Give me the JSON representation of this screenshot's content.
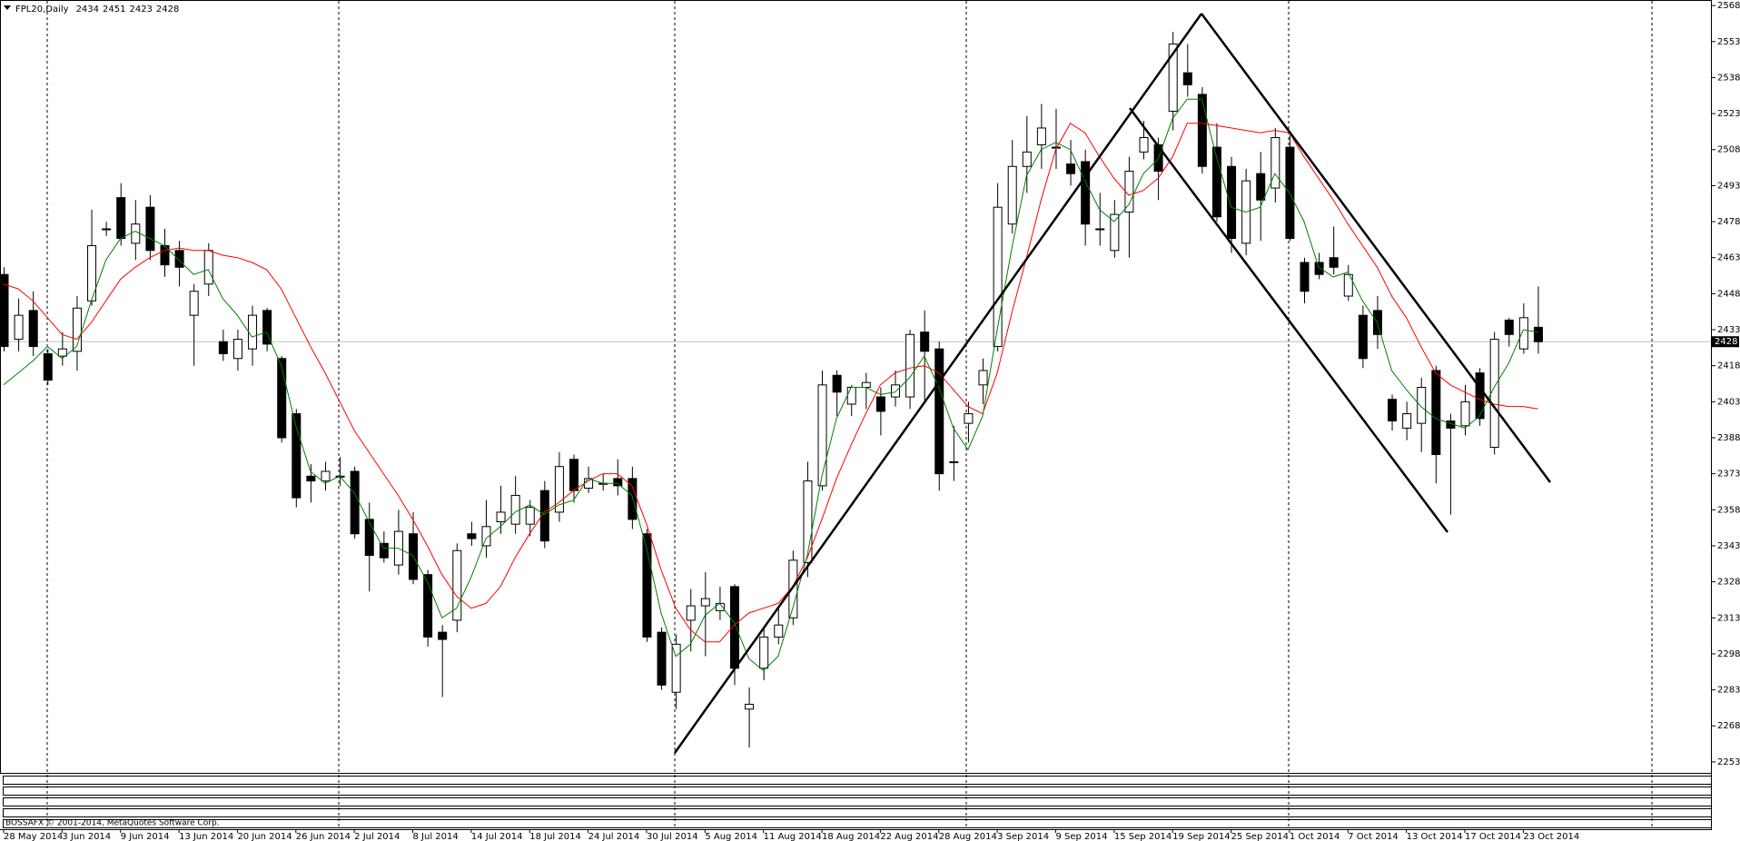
{
  "chart_data": {
    "type": "candlestick",
    "title": "FPL20,Daily",
    "footnote": "BOSSAFX © 2001-2014, MetaQuotes Software Corp.",
    "categories": [
      "28 May 2014",
      null,
      null,
      null,
      "3 Jun 2014",
      null,
      null,
      null,
      "9 Jun 2014",
      null,
      null,
      null,
      "13 Jun 2014",
      null,
      null,
      null,
      "20 Jun 2014",
      null,
      null,
      null,
      "26 Jun 2014",
      null,
      null,
      null,
      "2 Jul 2014",
      null,
      null,
      null,
      "8 Jul 2014",
      null,
      null,
      null,
      "14 Jul 2014",
      null,
      null,
      null,
      "18 Jul 2014",
      null,
      null,
      null,
      "24 Jul 2014",
      null,
      null,
      null,
      "30 Jul 2014",
      null,
      null,
      null,
      "5 Aug 2014",
      null,
      null,
      null,
      "11 Aug 2014",
      null,
      null,
      null,
      "18 Aug 2014",
      null,
      null,
      null,
      "22 Aug 2014",
      null,
      null,
      null,
      "28 Aug 2014",
      null,
      null,
      null,
      "3 Sep 2014",
      null,
      null,
      null,
      "9 Sep 2014",
      null,
      null,
      null,
      "15 Sep 2014",
      null,
      null,
      null,
      "19 Sep 2014",
      null,
      null,
      null,
      "25 Sep 2014",
      null,
      null,
      null,
      "1 Oct 2014",
      null,
      null,
      null,
      "7 Oct 2014",
      null,
      null,
      null,
      "13 Oct 2014",
      null,
      null,
      null,
      "17 Oct 2014",
      null,
      null,
      null,
      "23 Oct 2014",
      null
    ],
    "open": [
      2456,
      2429,
      2441,
      2423,
      2422,
      2424,
      2445,
      2475,
      2488,
      2469,
      2484,
      2468,
      2466,
      2439,
      2452,
      2428,
      2421,
      2425,
      2441,
      2421,
      2398,
      2372,
      2370,
      2372,
      2374,
      2354,
      2344,
      2335,
      2348,
      2331,
      2307,
      2312,
      2348,
      2343,
      2353,
      2352,
      2352,
      2366,
      2357,
      2379,
      2367,
      2369,
      2371,
      2371,
      2348,
      2307,
      2282,
      2312,
      2318,
      2316,
      2326,
      2275,
      2292,
      2305,
      2313,
      2336,
      2368,
      2414,
      2402,
      2409,
      2405,
      2405,
      2405,
      2432,
      2425,
      2378,
      2394,
      2410,
      2426,
      2477,
      2501,
      2510,
      2509,
      2502,
      2503,
      2475,
      2466,
      2482,
      2507,
      2510,
      2524,
      2540,
      2531,
      2509,
      2501,
      2469,
      2498,
      2492,
      2509,
      2461,
      2461,
      2463,
      2447,
      2439,
      2441,
      2404,
      2392,
      2394,
      2416,
      2395,
      2393,
      2415,
      2384,
      2437,
      2425,
      2434
    ],
    "high": [
      2459,
      2446,
      2449,
      2425,
      2432,
      2447,
      2483,
      2478,
      2494,
      2487,
      2489,
      2475,
      2470,
      2452,
      2469,
      2433,
      2433,
      2443,
      2442,
      2422,
      2400,
      2377,
      2378,
      2380,
      2376,
      2361,
      2349,
      2358,
      2357,
      2333,
      2310,
      2344,
      2353,
      2362,
      2368,
      2372,
      2362,
      2370,
      2382,
      2381,
      2376,
      2373,
      2379,
      2376,
      2350,
      2309,
      2306,
      2325,
      2332,
      2326,
      2327,
      2284,
      2309,
      2317,
      2341,
      2378,
      2416,
      2416,
      2410,
      2415,
      2409,
      2416,
      2433,
      2441,
      2428,
      2393,
      2403,
      2421,
      2494,
      2512,
      2522,
      2527,
      2525,
      2512,
      2508,
      2490,
      2487,
      2505,
      2520,
      2513,
      2557,
      2552,
      2534,
      2519,
      2505,
      2500,
      2507,
      2517,
      2514,
      2463,
      2465,
      2476,
      2460,
      2443,
      2447,
      2406,
      2403,
      2413,
      2418,
      2398,
      2410,
      2417,
      2432,
      2438,
      2444,
      2451
    ],
    "low": [
      2424,
      2424,
      2422,
      2410,
      2418,
      2416,
      2443,
      2472,
      2468,
      2462,
      2462,
      2455,
      2451,
      2418,
      2447,
      2420,
      2416,
      2418,
      2424,
      2386,
      2359,
      2361,
      2366,
      2368,
      2346,
      2324,
      2336,
      2331,
      2327,
      2301,
      2280,
      2307,
      2343,
      2338,
      2348,
      2348,
      2347,
      2342,
      2353,
      2361,
      2365,
      2366,
      2364,
      2350,
      2303,
      2283,
      2275,
      2299,
      2297,
      2312,
      2285,
      2259,
      2287,
      2302,
      2310,
      2330,
      2366,
      2397,
      2397,
      2400,
      2389,
      2401,
      2400,
      2403,
      2366,
      2370,
      2386,
      2402,
      2424,
      2473,
      2490,
      2500,
      2500,
      2493,
      2468,
      2468,
      2463,
      2463,
      2504,
      2487,
      2516,
      2530,
      2498,
      2478,
      2465,
      2464,
      2470,
      2486,
      2470,
      2444,
      2454,
      2456,
      2445,
      2417,
      2425,
      2391,
      2387,
      2382,
      2369,
      2356,
      2389,
      2393,
      2381,
      2426,
      2423,
      2423
    ],
    "close": [
      2426,
      2439,
      2426,
      2412,
      2425,
      2442,
      2468,
      2475,
      2471,
      2477,
      2466,
      2460,
      2459,
      2449,
      2466,
      2423,
      2429,
      2439,
      2427,
      2388,
      2363,
      2370,
      2374,
      2372,
      2348,
      2339,
      2338,
      2349,
      2329,
      2305,
      2304,
      2341,
      2346,
      2351,
      2357,
      2364,
      2359,
      2345,
      2376,
      2366,
      2371,
      2369,
      2368,
      2354,
      2305,
      2285,
      2302,
      2318,
      2321,
      2319,
      2292,
      2277,
      2305,
      2310,
      2337,
      2370,
      2410,
      2407,
      2409,
      2411,
      2399,
      2410,
      2431,
      2424,
      2373,
      2378,
      2398,
      2416,
      2484,
      2501,
      2507,
      2517,
      2509,
      2498,
      2477,
      2475,
      2481,
      2499,
      2513,
      2499,
      2552,
      2535,
      2501,
      2480,
      2471,
      2495,
      2487,
      2513,
      2471,
      2449,
      2456,
      2459,
      2456,
      2421,
      2431,
      2395,
      2398,
      2409,
      2381,
      2392,
      2403,
      2396,
      2429,
      2431,
      2438,
      2428
    ],
    "series": [
      {
        "color": "#ff0000",
        "values": [
          2452,
          2450,
          2445,
          2438,
          2431,
          2429,
          2436,
          2445,
          2454,
          2459,
          2463,
          2466,
          2467,
          2466,
          2466,
          2464,
          2463,
          2461,
          2458,
          2450,
          2438,
          2426,
          2415,
          2403,
          2391,
          2382,
          2373,
          2364,
          2354,
          2343,
          2331,
          2322,
          2317,
          2319,
          2326,
          2338,
          2348,
          2357,
          2361,
          2366,
          2370,
          2373,
          2373,
          2368,
          2352,
          2333,
          2317,
          2308,
          2303,
          2303,
          2310,
          2315,
          2317,
          2319,
          2326,
          2338,
          2354,
          2371,
          2385,
          2398,
          2410,
          2415,
          2417,
          2418,
          2415,
          2408,
          2401,
          2398,
          2415,
          2440,
          2463,
          2487,
          2508,
          2519,
          2515,
          2505,
          2496,
          2489,
          2491,
          2496,
          2505,
          2519,
          2519,
          2518,
          2517,
          2516,
          2515,
          2516,
          2515,
          2505,
          2496,
          2487,
          2477,
          2468,
          2459,
          2447,
          2438,
          2426,
          2415,
          2410,
          2407,
          2404,
          2402,
          2401,
          2401,
          2400
        ]
      },
      {
        "color": "#008000",
        "values": [
          2410,
          2415,
          2420,
          2426,
          2421,
          2426,
          2445,
          2462,
          2471,
          2474,
          2471,
          2468,
          2462,
          2456,
          2458,
          2446,
          2439,
          2430,
          2432,
          2418,
          2393,
          2374,
          2369,
          2372,
          2365,
          2353,
          2342,
          2342,
          2339,
          2328,
          2313,
          2317,
          2330,
          2346,
          2351,
          2357,
          2360,
          2356,
          2360,
          2362,
          2371,
          2369,
          2369,
          2364,
          2342,
          2315,
          2297,
          2302,
          2314,
          2319,
          2311,
          2296,
          2291,
          2297,
          2317,
          2339,
          2372,
          2396,
          2409,
          2409,
          2406,
          2407,
          2413,
          2422,
          2409,
          2392,
          2383,
          2397,
          2433,
          2467,
          2497,
          2508,
          2511,
          2508,
          2495,
          2483,
          2478,
          2485,
          2498,
          2504,
          2521,
          2529,
          2529,
          2505,
          2484,
          2482,
          2484,
          2498,
          2490,
          2478,
          2459,
          2455,
          2457,
          2445,
          2436,
          2416,
          2408,
          2401,
          2396,
          2394,
          2392,
          2397,
          2409,
          2419,
          2433,
          2432
        ]
      }
    ],
    "ylim": [
      2248.8,
      2568.8
    ],
    "yticks": [
      2253,
      2268,
      2283,
      2298,
      2313,
      2328,
      2343,
      2358,
      2373,
      2388,
      2403,
      2418,
      2433,
      2448,
      2463,
      2478,
      2493,
      2508,
      2523,
      2538,
      2553,
      2568
    ]
  }
}
